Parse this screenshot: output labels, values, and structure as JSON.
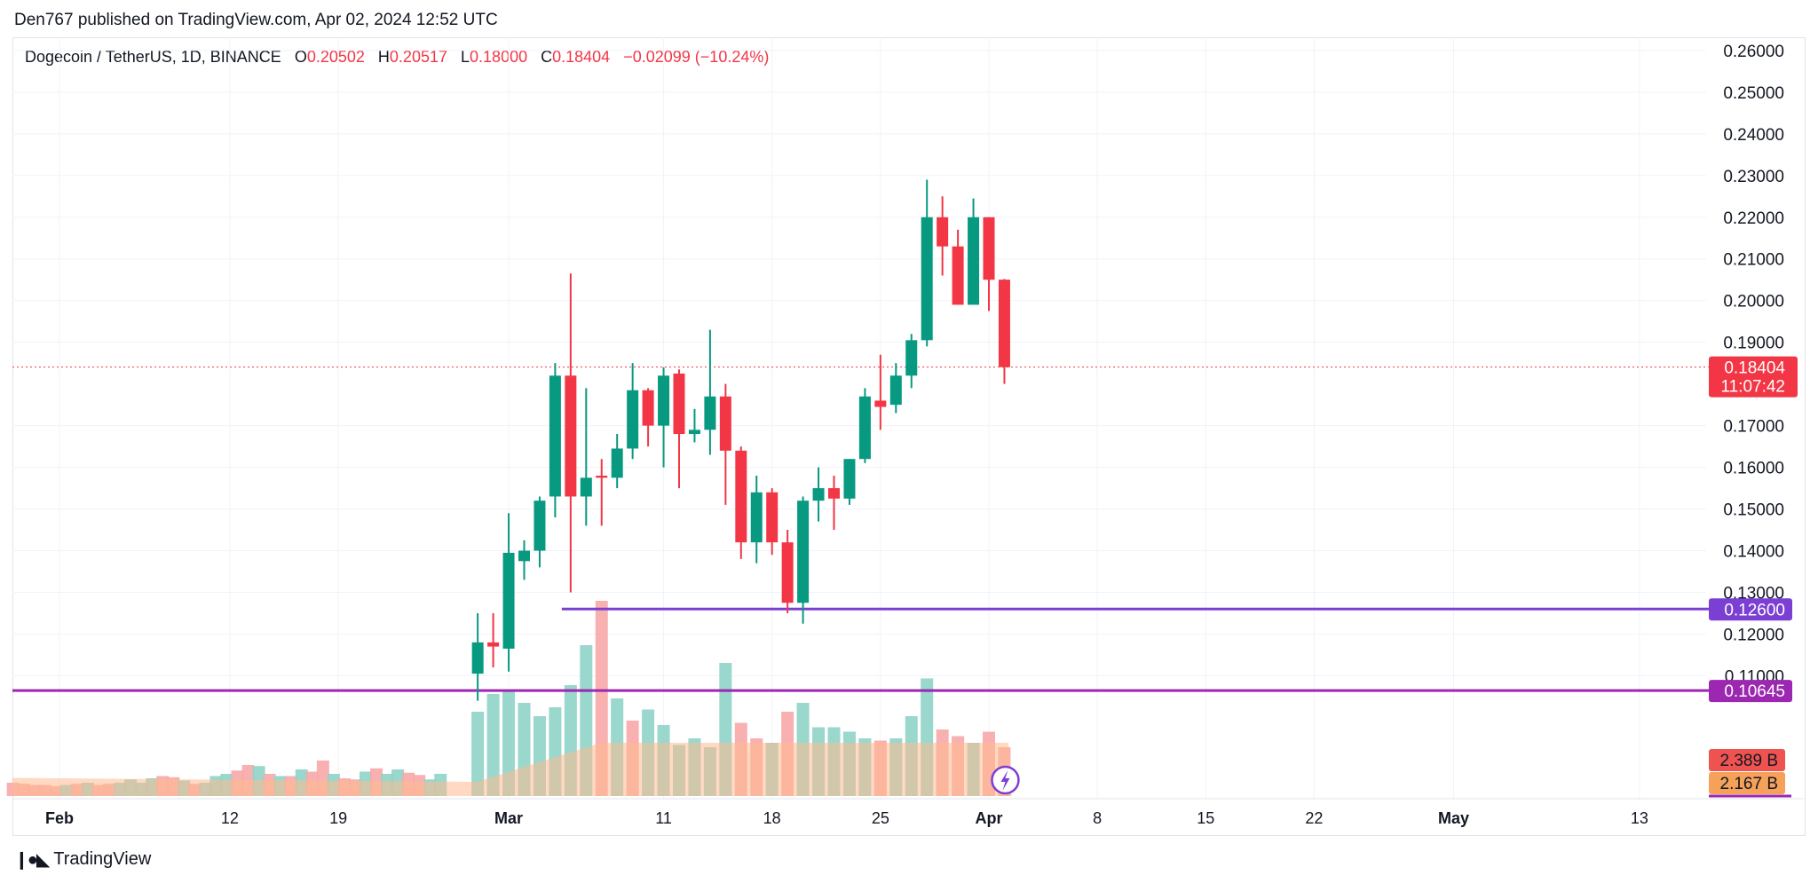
{
  "header": {
    "publisher_text": "Den767 published on TradingView.com, Apr 02, 2024 12:52 UTC"
  },
  "legend": {
    "symbol": "Dogecoin / TetherUS, 1D, BINANCE",
    "open_label": "O",
    "open": "0.20502",
    "high_label": "H",
    "high": "0.20517",
    "low_label": "L",
    "low": "0.18000",
    "close_label": "C",
    "close": "0.18404",
    "change": "−0.02099 (−10.24%)"
  },
  "footer": {
    "brand": "TradingView",
    "logo_icon": "tradingview-logo-icon"
  },
  "colors": {
    "up": "#089981",
    "down": "#f23645",
    "purple_line": "#7b3fd4",
    "magenta_line": "#9c27b0",
    "vol_up": "#8fd3c8",
    "vol_down": "#f7a9a7",
    "vol_ma": "#ffb98f"
  },
  "chart_data": {
    "type": "candlestick",
    "price_axis": {
      "ylim": [
        0.09,
        0.265
      ],
      "ticks": [
        "0.26000",
        "0.25000",
        "0.24000",
        "0.23000",
        "0.22000",
        "0.21000",
        "0.20000",
        "0.19000",
        "0.17000",
        "0.16000",
        "0.15000",
        "0.14000",
        "0.13000",
        "0.12000",
        "0.11000"
      ]
    },
    "time_axis": {
      "labels": [
        {
          "text": "Feb",
          "date": "2024-02-01",
          "bold": true
        },
        {
          "text": "12",
          "date": "2024-02-12",
          "bold": false
        },
        {
          "text": "19",
          "date": "2024-02-19",
          "bold": false
        },
        {
          "text": "Mar",
          "date": "2024-03-01",
          "bold": true
        },
        {
          "text": "11",
          "date": "2024-03-11",
          "bold": false
        },
        {
          "text": "18",
          "date": "2024-03-18",
          "bold": false
        },
        {
          "text": "25",
          "date": "2024-03-25",
          "bold": false
        },
        {
          "text": "Apr",
          "date": "2024-04-01",
          "bold": true
        },
        {
          "text": "8",
          "date": "2024-04-08",
          "bold": false
        },
        {
          "text": "15",
          "date": "2024-04-15",
          "bold": false
        },
        {
          "text": "22",
          "date": "2024-04-22",
          "bold": false
        },
        {
          "text": "May",
          "date": "2024-05-01",
          "bold": true
        },
        {
          "text": "13",
          "date": "2024-05-13",
          "bold": false
        }
      ]
    },
    "candles": [
      {
        "date": "2024-02-28",
        "o": 0.1105,
        "h": 0.125,
        "l": 0.104,
        "c": 0.118
      },
      {
        "date": "2024-02-29",
        "o": 0.118,
        "h": 0.125,
        "l": 0.112,
        "c": 0.117
      },
      {
        "date": "2024-03-01",
        "o": 0.1165,
        "h": 0.149,
        "l": 0.111,
        "c": 0.1395
      },
      {
        "date": "2024-03-02",
        "o": 0.1375,
        "h": 0.1425,
        "l": 0.133,
        "c": 0.14
      },
      {
        "date": "2024-03-03",
        "o": 0.14,
        "h": 0.153,
        "l": 0.136,
        "c": 0.152
      },
      {
        "date": "2024-03-04",
        "o": 0.153,
        "h": 0.185,
        "l": 0.148,
        "c": 0.182
      },
      {
        "date": "2024-03-05",
        "o": 0.182,
        "h": 0.2065,
        "l": 0.13,
        "c": 0.153
      },
      {
        "date": "2024-03-06",
        "o": 0.153,
        "h": 0.179,
        "l": 0.146,
        "c": 0.1575
      },
      {
        "date": "2024-03-07",
        "o": 0.158,
        "h": 0.162,
        "l": 0.146,
        "c": 0.1575
      },
      {
        "date": "2024-03-08",
        "o": 0.1575,
        "h": 0.168,
        "l": 0.155,
        "c": 0.1645
      },
      {
        "date": "2024-03-09",
        "o": 0.1645,
        "h": 0.185,
        "l": 0.162,
        "c": 0.1785
      },
      {
        "date": "2024-03-10",
        "o": 0.1785,
        "h": 0.179,
        "l": 0.165,
        "c": 0.17
      },
      {
        "date": "2024-03-11",
        "o": 0.17,
        "h": 0.184,
        "l": 0.16,
        "c": 0.182
      },
      {
        "date": "2024-03-12",
        "o": 0.1825,
        "h": 0.1835,
        "l": 0.155,
        "c": 0.168
      },
      {
        "date": "2024-03-13",
        "o": 0.168,
        "h": 0.174,
        "l": 0.166,
        "c": 0.169
      },
      {
        "date": "2024-03-14",
        "o": 0.169,
        "h": 0.193,
        "l": 0.163,
        "c": 0.177
      },
      {
        "date": "2024-03-15",
        "o": 0.177,
        "h": 0.18,
        "l": 0.151,
        "c": 0.164
      },
      {
        "date": "2024-03-16",
        "o": 0.164,
        "h": 0.165,
        "l": 0.138,
        "c": 0.142
      },
      {
        "date": "2024-03-17",
        "o": 0.142,
        "h": 0.158,
        "l": 0.137,
        "c": 0.154
      },
      {
        "date": "2024-03-18",
        "o": 0.154,
        "h": 0.155,
        "l": 0.139,
        "c": 0.142
      },
      {
        "date": "2024-03-19",
        "o": 0.142,
        "h": 0.145,
        "l": 0.125,
        "c": 0.1275
      },
      {
        "date": "2024-03-20",
        "o": 0.1275,
        "h": 0.153,
        "l": 0.1225,
        "c": 0.152
      },
      {
        "date": "2024-03-21",
        "o": 0.152,
        "h": 0.16,
        "l": 0.147,
        "c": 0.155
      },
      {
        "date": "2024-03-22",
        "o": 0.155,
        "h": 0.158,
        "l": 0.145,
        "c": 0.1525
      },
      {
        "date": "2024-03-23",
        "o": 0.1525,
        "h": 0.162,
        "l": 0.151,
        "c": 0.162
      },
      {
        "date": "2024-03-24",
        "o": 0.162,
        "h": 0.179,
        "l": 0.161,
        "c": 0.177
      },
      {
        "date": "2024-03-25",
        "o": 0.176,
        "h": 0.187,
        "l": 0.169,
        "c": 0.1745
      },
      {
        "date": "2024-03-26",
        "o": 0.175,
        "h": 0.185,
        "l": 0.173,
        "c": 0.182
      },
      {
        "date": "2024-03-27",
        "o": 0.182,
        "h": 0.192,
        "l": 0.179,
        "c": 0.1905
      },
      {
        "date": "2024-03-28",
        "o": 0.1905,
        "h": 0.229,
        "l": 0.189,
        "c": 0.22
      },
      {
        "date": "2024-03-29",
        "o": 0.22,
        "h": 0.225,
        "l": 0.206,
        "c": 0.213
      },
      {
        "date": "2024-03-30",
        "o": 0.213,
        "h": 0.217,
        "l": 0.199,
        "c": 0.199
      },
      {
        "date": "2024-03-31",
        "o": 0.199,
        "h": 0.2245,
        "l": 0.199,
        "c": 0.22
      },
      {
        "date": "2024-04-01",
        "o": 0.22,
        "h": 0.22,
        "l": 0.1975,
        "c": 0.205
      },
      {
        "date": "2024-04-02",
        "o": 0.20502,
        "h": 0.20517,
        "l": 0.18,
        "c": 0.18404
      }
    ],
    "volume_bars": {
      "vol_max_label_scale": 7.4,
      "early_bars": [
        0.6,
        0.55,
        0.5,
        0.5,
        0.45,
        0.5,
        0.55,
        0.6,
        0.5,
        0.55,
        0.6,
        0.75,
        0.6,
        0.8,
        0.9,
        0.85,
        0.7,
        0.55,
        0.6,
        0.9,
        1.0,
        1.15,
        1.4,
        1.35,
        1.0,
        0.9,
        0.9,
        1.2,
        1.1,
        1.6,
        1.0,
        0.8,
        0.75,
        1.1,
        1.25,
        1.0,
        1.2,
        1.05,
        0.95,
        0.75,
        1.0
      ],
      "early_colors": [
        "d",
        "d",
        "d",
        "d",
        "d",
        "u",
        "d",
        "u",
        "d",
        "d",
        "u",
        "u",
        "u",
        "u",
        "d",
        "d",
        "u",
        "d",
        "u",
        "u",
        "u",
        "d",
        "d",
        "u",
        "d",
        "u",
        "d",
        "u",
        "d",
        "d",
        "u",
        "d",
        "d",
        "u",
        "d",
        "u",
        "u",
        "d",
        "d",
        "u",
        "u"
      ],
      "main_bars": [
        3.8,
        4.6,
        4.8,
        4.2,
        3.6,
        4.0,
        5.0,
        6.8,
        8.8,
        4.4,
        3.4,
        3.9,
        3.2,
        2.3,
        2.6,
        2.2,
        6.0,
        3.3,
        2.6,
        2.4,
        3.8,
        4.2,
        3.1,
        3.1,
        2.9,
        2.6,
        2.5,
        2.6,
        3.6,
        5.3,
        3.0,
        2.7,
        2.4,
        2.9,
        2.2
      ],
      "main_colors": [
        "u",
        "u",
        "u",
        "u",
        "u",
        "u",
        "u",
        "u",
        "d",
        "u",
        "d",
        "u",
        "u",
        "u",
        "u",
        "u",
        "u",
        "d",
        "d",
        "u",
        "d",
        "u",
        "u",
        "u",
        "u",
        "u",
        "d",
        "u",
        "u",
        "u",
        "d",
        "d",
        "u",
        "d",
        "d"
      ],
      "ma_level_last": 2.167
    },
    "horizontal_lines": [
      {
        "price": 0.126,
        "label": "0.12600",
        "color_key": "purple_line",
        "start_date": "2024-03-05"
      },
      {
        "price": 0.10645,
        "label": "0.10645",
        "color_key": "magenta_line",
        "start_date": null
      }
    ],
    "last_price": {
      "price": 0.18404,
      "label": "0.18404",
      "countdown": "11:07:42"
    },
    "volume_labels": [
      {
        "text": "2.389 B",
        "color": "#ef5350"
      },
      {
        "text": "2.167 B",
        "color": "#f6a15a"
      }
    ],
    "grid": true
  }
}
